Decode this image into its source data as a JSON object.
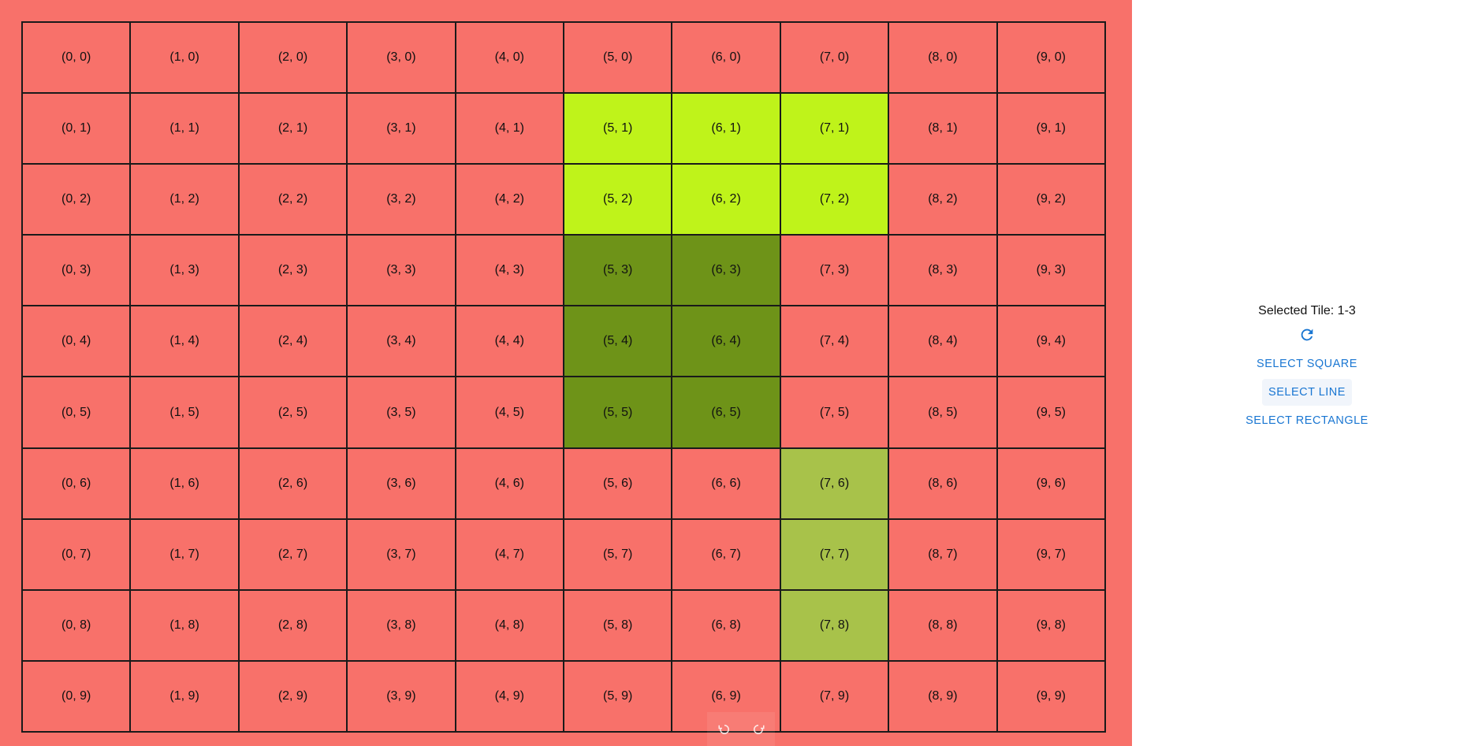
{
  "colors": {
    "board_background": "#f8716a",
    "tile_default": "#f8716a",
    "square_selection": "#bff31a",
    "rectangle_selection": "#6e9318",
    "line_selection": "#a8c24a",
    "accent": "#1976d2"
  },
  "grid": {
    "columns": 10,
    "rows": 10,
    "label_format": "(x, y)",
    "highlighted_tiles": {
      "square": [
        "5,1",
        "6,1",
        "7,1",
        "5,2",
        "6,2",
        "7,2"
      ],
      "rectangle": [
        "5,3",
        "6,3",
        "5,4",
        "6,4",
        "5,5",
        "6,5"
      ],
      "line": [
        "7,6",
        "7,7",
        "7,8"
      ]
    }
  },
  "history": {
    "undo_icon": "undo-icon",
    "redo_icon": "redo-icon"
  },
  "panel": {
    "selected_tile_text": "Selected Tile: 1-3",
    "refresh_icon": "refresh-icon",
    "buttons": {
      "select_square": "SELECT SQUARE",
      "select_line": "SELECT LINE",
      "select_rectangle": "SELECT RECTANGLE"
    },
    "active_button": "select_line"
  }
}
